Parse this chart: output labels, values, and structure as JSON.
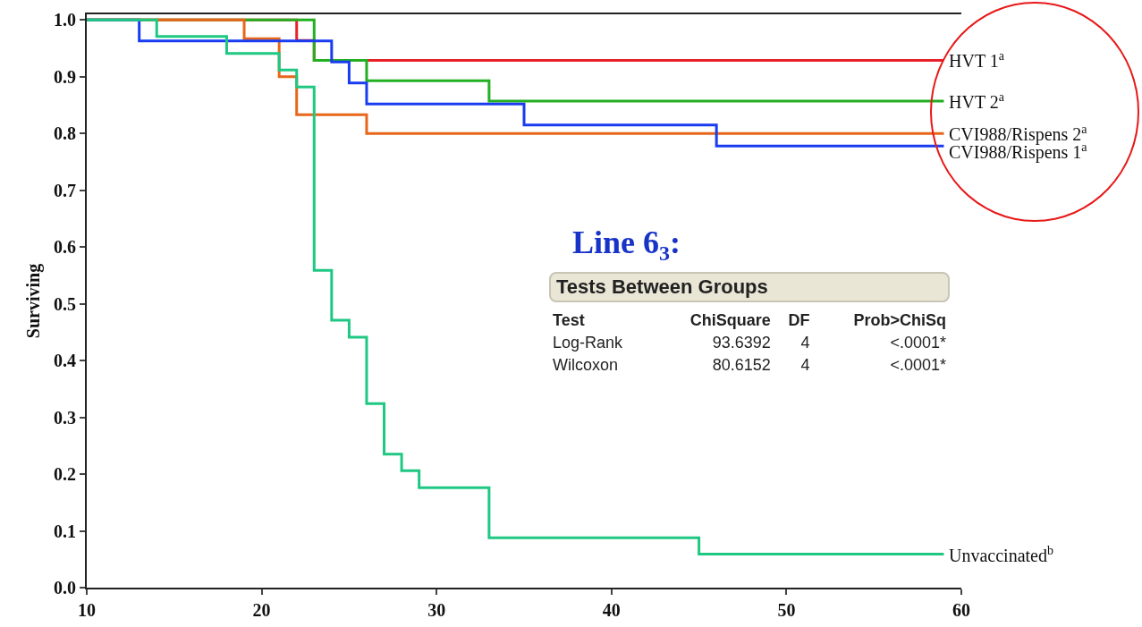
{
  "chart_data": {
    "type": "step",
    "ylabel": "Surviving",
    "xlim": [
      10,
      60
    ],
    "xticks": [
      10,
      20,
      30,
      40,
      50,
      60
    ],
    "ylim": [
      0,
      1.01
    ],
    "yticks": [
      {
        "value": 0,
        "label": "0.0"
      },
      0.1,
      0.2,
      0.3,
      0.4,
      0.5,
      0.6,
      0.7,
      0.8,
      0.9,
      {
        "value": 1,
        "label": "1.0"
      }
    ],
    "grid": false,
    "legend": false,
    "series": [
      {
        "name": "HVT 1$^{a}$",
        "color": "#e8202a",
        "x": [
          10,
          22,
          23,
          59
        ],
        "values": [
          1,
          0.964,
          0.929,
          0.929
        ]
      },
      {
        "name": "HVT 2$^{a}$",
        "color": "#22b022",
        "x": [
          10,
          23,
          26,
          33,
          59
        ],
        "values": [
          1,
          0.929,
          0.893,
          0.857,
          0.857
        ]
      },
      {
        "name": "CVI988/Rispens 2$^{a}$",
        "color": "#e8661a",
        "x": [
          10,
          19,
          21,
          22,
          26,
          59
        ],
        "values": [
          1,
          0.967,
          0.9,
          0.833,
          0.8,
          0.8
        ]
      },
      {
        "name": "CVI988/Rispens 1$^{a}$",
        "color": "#1a3cf0",
        "x": [
          10,
          13,
          24,
          25,
          26,
          35,
          46,
          59
        ],
        "values": [
          1,
          0.963,
          0.926,
          0.889,
          0.852,
          0.815,
          0.778,
          0.778
        ]
      },
      {
        "name": "Unvaccinated$^{b}$",
        "color": "#1ec882",
        "x": [
          10,
          14,
          18,
          21,
          22,
          23,
          24,
          25,
          26,
          27,
          28,
          29,
          33,
          45,
          59
        ],
        "values": [
          1,
          0.971,
          0.941,
          0.912,
          0.882,
          0.559,
          0.471,
          0.441,
          0.324,
          0.235,
          0.206,
          0.176,
          0.088,
          0.059,
          0.059
        ]
      }
    ],
    "annotations": [
      "Line 6$_{3}$:",
      "Tests Between Groups",
      "Test",
      "ChiSquare",
      "DF",
      "Prob>ChiSq",
      "Log-Rank",
      "93.6392",
      "4",
      "<.0001*",
      "Wilcoxon",
      "80.6152",
      "4",
      "<.0001*"
    ]
  }
}
